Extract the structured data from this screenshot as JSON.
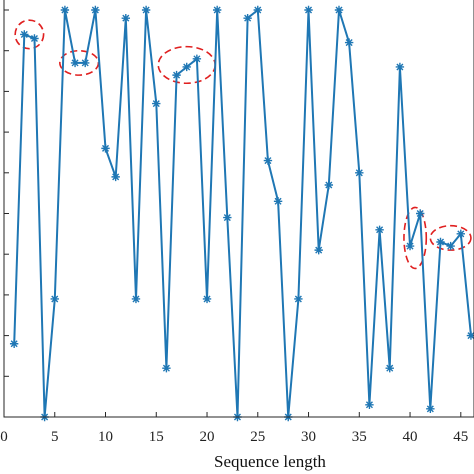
{
  "chart_data": {
    "type": "line",
    "xlabel": "Sequence length",
    "ylabel": "",
    "xlim": [
      0,
      46.3
    ],
    "ylim": [
      0,
      1
    ],
    "x_ticks": [
      "0",
      "5",
      "10",
      "15",
      "20",
      "25",
      "30",
      "35",
      "40",
      "45"
    ],
    "grid": false,
    "legend": "none",
    "series": [
      {
        "marker": "asterisk",
        "color": "#1f77b4",
        "x": [
          1,
          2,
          3,
          4,
          5,
          6,
          7,
          8,
          9,
          10,
          11,
          12,
          13,
          14,
          15,
          16,
          17,
          18,
          19,
          20,
          21,
          22,
          23,
          24,
          25,
          26,
          27,
          28,
          29,
          30,
          31,
          32,
          33,
          34,
          35,
          36,
          37,
          38,
          39,
          40,
          41,
          42,
          43,
          44,
          45,
          46
        ],
        "y": [
          0.18,
          0.94,
          0.93,
          0.0,
          0.29,
          1.0,
          0.87,
          0.87,
          1.0,
          0.66,
          0.59,
          0.98,
          0.29,
          1.0,
          0.77,
          0.12,
          0.84,
          0.86,
          0.88,
          0.29,
          1.0,
          0.49,
          0.0,
          0.98,
          1.0,
          0.63,
          0.53,
          0.0,
          0.29,
          1.0,
          0.41,
          0.57,
          1.0,
          0.92,
          0.6,
          0.03,
          0.46,
          0.12,
          0.86,
          0.42,
          0.5,
          0.02,
          0.43,
          0.42,
          0.45,
          0.2
        ]
      }
    ],
    "annotations": [
      {
        "shape": "dashed-ellipse",
        "color": "#e02020",
        "x_center": 2.5,
        "y_center": 0.94,
        "x_radius": 1.4,
        "y_radius": 0.035
      },
      {
        "shape": "dashed-ellipse",
        "color": "#e02020",
        "x_center": 7.4,
        "y_center": 0.87,
        "x_radius": 1.9,
        "y_radius": 0.03
      },
      {
        "shape": "dashed-ellipse",
        "color": "#e02020",
        "x_center": 18.0,
        "y_center": 0.865,
        "x_radius": 2.8,
        "y_radius": 0.045
      },
      {
        "shape": "dashed-ellipse",
        "color": "#e02020",
        "x_center": 40.5,
        "y_center": 0.44,
        "x_radius": 1.1,
        "y_radius": 0.075
      },
      {
        "shape": "dashed-ellipse",
        "color": "#e02020",
        "x_center": 44.0,
        "y_center": 0.44,
        "x_radius": 2.0,
        "y_radius": 0.03
      }
    ]
  }
}
